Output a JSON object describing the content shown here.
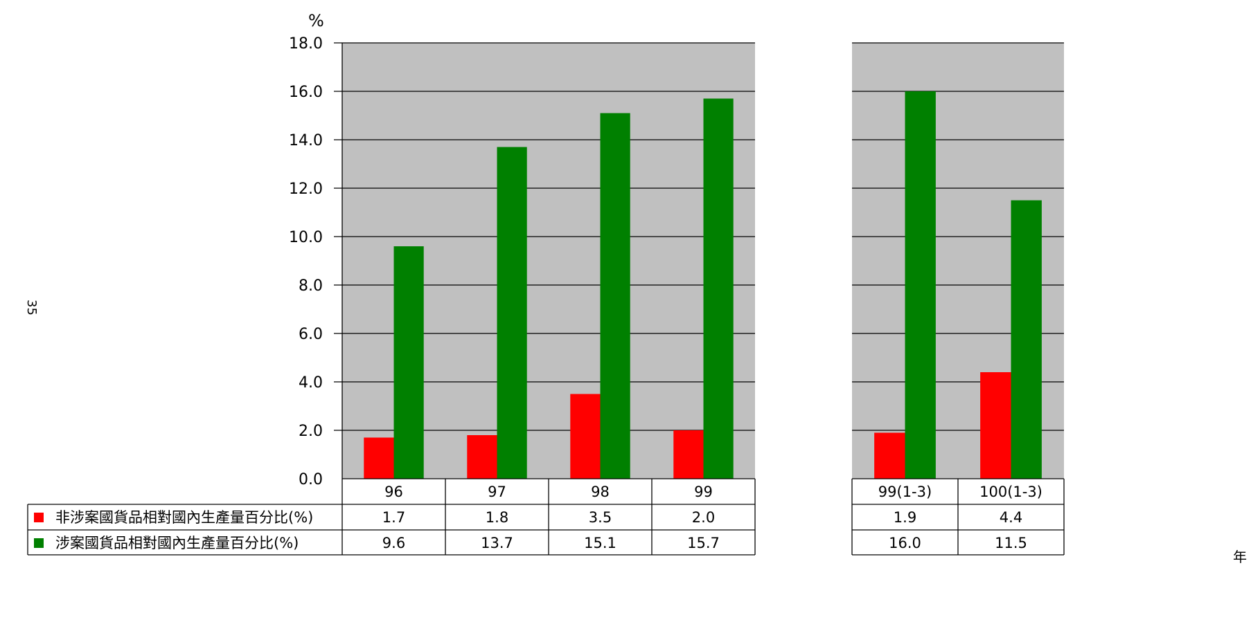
{
  "page_number": "35",
  "chart_data": {
    "type": "bar",
    "ylabel": "%",
    "xlabel": "年",
    "ylim": [
      0,
      18
    ],
    "y_ticks": [
      "0.0",
      "2.0",
      "4.0",
      "6.0",
      "8.0",
      "10.0",
      "12.0",
      "14.0",
      "16.0",
      "18.0"
    ],
    "grid": true,
    "legend_placement": "data-table-left",
    "panels": [
      {
        "categories": [
          "96",
          "97",
          "98",
          "99"
        ],
        "series": [
          {
            "name": "非涉案國貨品相對國內生產量百分比(%)",
            "color": "#ff0000",
            "values": [
              1.7,
              1.8,
              3.5,
              2.0
            ],
            "labels": [
              "1.7",
              "1.8",
              "3.5",
              "2.0"
            ]
          },
          {
            "name": "涉案國貨品相對國內生產量百分比(%)",
            "color": "#008000",
            "values": [
              9.6,
              13.7,
              15.1,
              15.7
            ],
            "labels": [
              "9.6",
              "13.7",
              "15.1",
              "15.7"
            ]
          }
        ]
      },
      {
        "categories": [
          "99(1-3)",
          "100(1-3)"
        ],
        "series": [
          {
            "name": "非涉案國貨品相對國內生產量百分比(%)",
            "color": "#ff0000",
            "values": [
              1.9,
              4.4
            ],
            "labels": [
              "1.9",
              "4.4"
            ]
          },
          {
            "name": "涉案國貨品相對國內生產量百分比(%)",
            "color": "#008000",
            "values": [
              16.0,
              11.5
            ],
            "labels": [
              "16.0",
              "11.5"
            ]
          }
        ]
      }
    ],
    "legend": [
      {
        "name": "非涉案國貨品相對國內生產量百分比(%)",
        "color": "#ff0000"
      },
      {
        "name": "涉案國貨品相對國內生產量百分比(%)",
        "color": "#008000"
      }
    ],
    "plot_background": "#c0c0c0"
  }
}
